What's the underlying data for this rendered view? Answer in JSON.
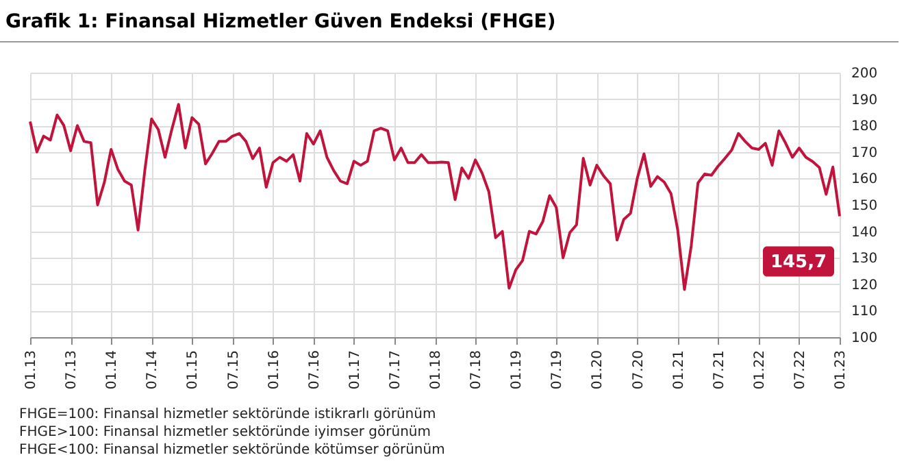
{
  "chart_data": {
    "type": "line",
    "title": "Grafik 1: Finansal Hizmetler Güven Endeksi (FHGE)",
    "categories": [
      "01.13",
      null,
      null,
      null,
      null,
      null,
      "07.13",
      null,
      null,
      null,
      null,
      null,
      "01.14",
      null,
      null,
      null,
      null,
      null,
      "07.14",
      null,
      null,
      null,
      null,
      null,
      "01.15",
      null,
      null,
      null,
      null,
      null,
      "07.15",
      null,
      null,
      null,
      null,
      null,
      "01.16",
      null,
      null,
      null,
      null,
      null,
      "07.16",
      null,
      null,
      null,
      null,
      null,
      "01.17",
      null,
      null,
      null,
      null,
      null,
      "07.17",
      null,
      null,
      null,
      null,
      null,
      "01.18",
      null,
      null,
      null,
      null,
      null,
      "07.18",
      null,
      null,
      null,
      null,
      null,
      "01.19",
      null,
      null,
      null,
      null,
      null,
      "07.19",
      null,
      null,
      null,
      null,
      null,
      "01.20",
      null,
      null,
      null,
      null,
      null,
      "07.20",
      null,
      null,
      null,
      null,
      null,
      "01.21",
      null,
      null,
      null,
      null,
      null,
      "07.21",
      null,
      null,
      null,
      null,
      null,
      "01.22",
      null,
      null,
      null,
      null,
      null,
      "07.22",
      null,
      null,
      null,
      null,
      null,
      "01.23"
    ],
    "series": [
      {
        "color": "#c0143c",
        "values": [
          181.5,
          170,
          176,
          174.5,
          184,
          180,
          170.5,
          180,
          174,
          173.5,
          150,
          158.5,
          171,
          163.5,
          159,
          157.5,
          140.5,
          163,
          182.5,
          178.5,
          168,
          178.5,
          188,
          171.5,
          183,
          180.5,
          165.5,
          169.5,
          174,
          174,
          176,
          177,
          174,
          167.5,
          171.5,
          156.7,
          166,
          168,
          166.5,
          169,
          159,
          177,
          173,
          178,
          168,
          163,
          159,
          158,
          166.5,
          165,
          166.5,
          178,
          179,
          178,
          167,
          171.5,
          166,
          166,
          169,
          166,
          166,
          166.2,
          166,
          152,
          164,
          160,
          167,
          162,
          155,
          137.6,
          140,
          118.5,
          125.5,
          129,
          140,
          139,
          143.7,
          153.5,
          149,
          130,
          139.5,
          142.5,
          167.6,
          157.5,
          165,
          161,
          158,
          136.7,
          144.5,
          146.8,
          160,
          169.3,
          157,
          160.7,
          158.6,
          154.3,
          140.5,
          118,
          134.5,
          158.3,
          161.7,
          161.2,
          164.7,
          167.6,
          170.7,
          177,
          174,
          171.5,
          171,
          173.3,
          165,
          178,
          173.3,
          168,
          171.5,
          168,
          166.4,
          164.1,
          154,
          164.3,
          145.7
        ]
      }
    ],
    "ylim": [
      100,
      200
    ],
    "yticks": [
      100,
      110,
      120,
      130,
      140,
      150,
      160,
      170,
      180,
      190,
      200
    ],
    "grid": true,
    "line_style": "solid",
    "annotations": [
      {
        "text": "145,7",
        "x": "01.23",
        "y": 145.7
      },
      "FHGE=100: Finansal hizmetler sektöründe istikrarlı görünüm",
      "FHGE>100: Finansal hizmetler sektöründe iyimser görünüm",
      "FHGE<100: Finansal hizmetler sektöründe kötümser görünüm"
    ]
  }
}
